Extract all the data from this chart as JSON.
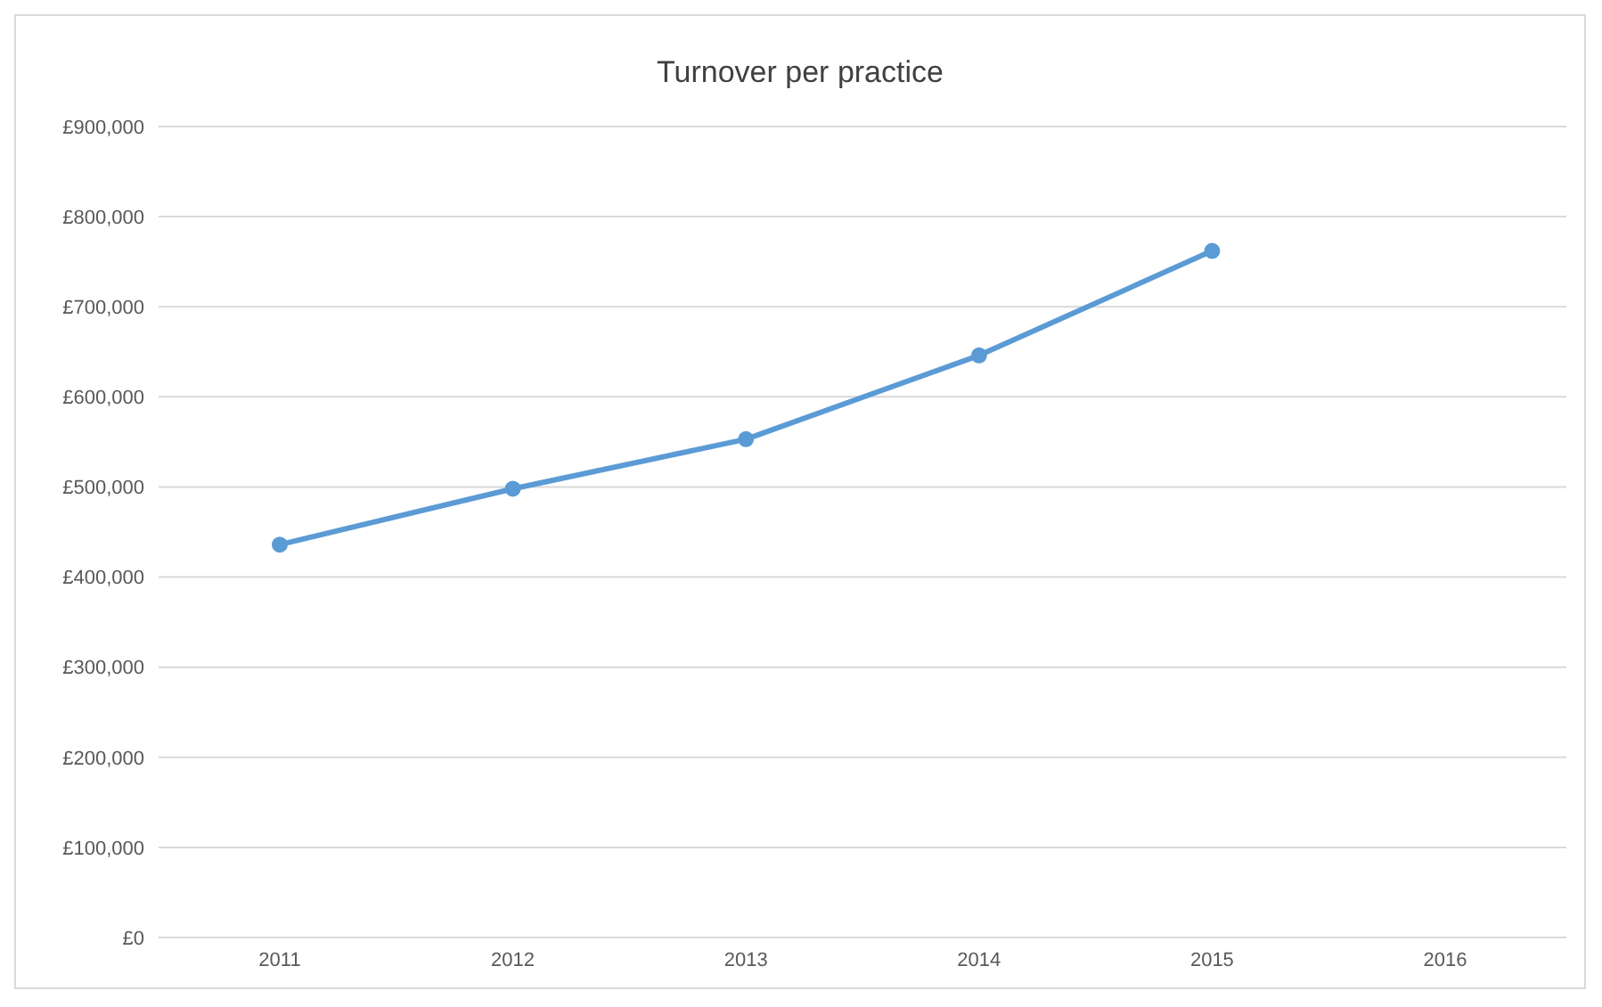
{
  "chart_data": {
    "type": "line",
    "title": "Turnover per practice",
    "categories": [
      "2011",
      "2012",
      "2013",
      "2014",
      "2015",
      "2016"
    ],
    "series": [
      {
        "color": "#5b9bd5",
        "values": [
          436000,
          498000,
          553000,
          646000,
          762000,
          null
        ]
      }
    ],
    "ylim": [
      0,
      900000
    ],
    "yticks": [
      {
        "value": 0,
        "label": "£0"
      },
      {
        "value": 100000,
        "label": "£100,000"
      },
      {
        "value": 200000,
        "label": "£200,000"
      },
      {
        "value": 300000,
        "label": "£300,000"
      },
      {
        "value": 400000,
        "label": "£400,000"
      },
      {
        "value": 500000,
        "label": "£500,000"
      },
      {
        "value": 600000,
        "label": "£600,000"
      },
      {
        "value": 700000,
        "label": "£700,000"
      },
      {
        "value": 800000,
        "label": "£800,000"
      },
      {
        "value": 900000,
        "label": "£900,000"
      }
    ],
    "grid": "y",
    "marker": "circle",
    "legend": false
  }
}
